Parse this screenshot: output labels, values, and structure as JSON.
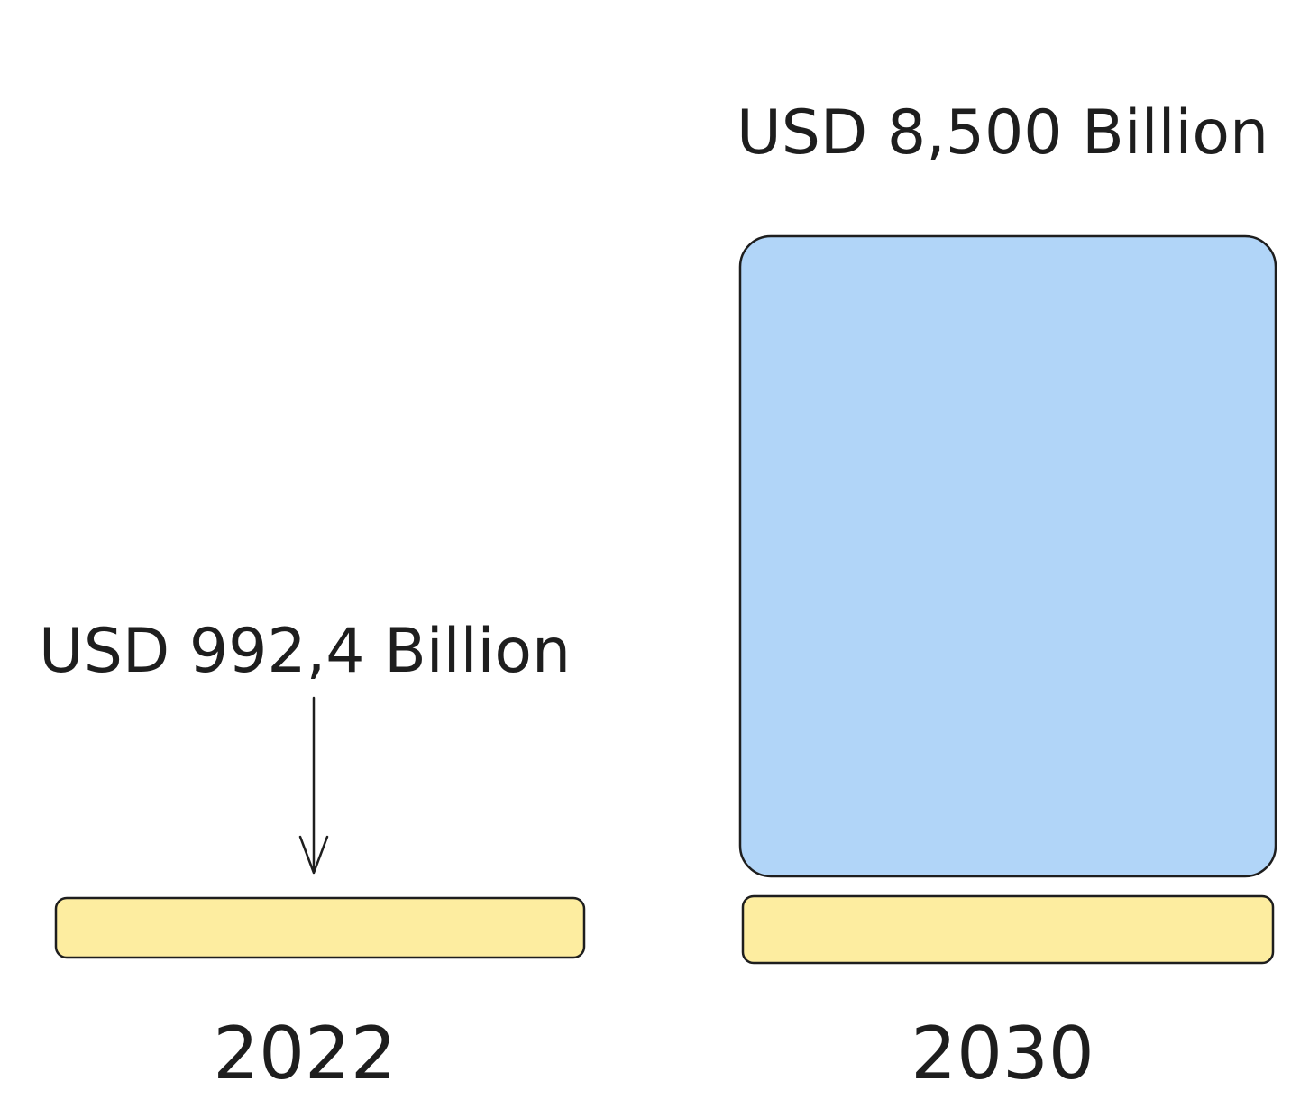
{
  "chart_data": {
    "type": "bar",
    "categories": [
      "2022",
      "2030"
    ],
    "values": [
      992.4,
      8500
    ],
    "value_labels": [
      "USD 992,4 Billion",
      "USD 8,500 Billion"
    ],
    "ylim": [
      0,
      8500
    ],
    "grid": false,
    "colors": {
      "base_bar": "#fdeda0",
      "value_bar": "#b1d5f8",
      "stroke": "#1e1e1e"
    }
  }
}
